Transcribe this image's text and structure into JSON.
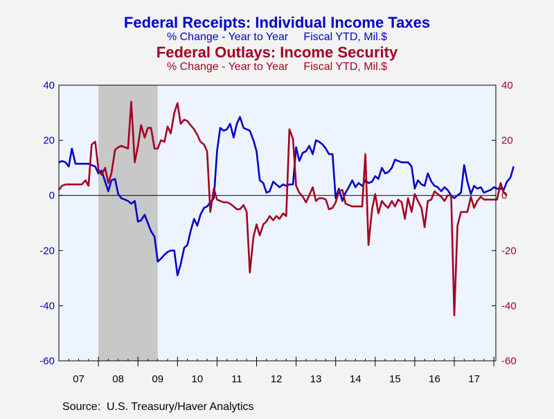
{
  "titles": {
    "line1": "Federal Receipts: Individual Income Taxes",
    "line2": "% Change - Year to Year     Fiscal YTD, Mil.$",
    "line3": "Federal Outlays: Income Security",
    "line4": "% Change - Year to Year     Fiscal YTD, Mil.$"
  },
  "source": "Source:  U.S. Treasury/Haver Analytics",
  "colors": {
    "blue": "#0000cc",
    "red": "#a50021",
    "plot_bg": "#eef4ff",
    "recession": "#c8c8c8",
    "page_bg": "#f3f3f3"
  },
  "chart_data": {
    "type": "line",
    "x_unit": "fiscal year index (0 = start of FY2007)",
    "x_range": [
      0,
      11.05
    ],
    "x_tick_labels": [
      "07",
      "08",
      "09",
      "10",
      "11",
      "12",
      "13",
      "14",
      "15",
      "16",
      "17"
    ],
    "y_left_range": [
      -60,
      40
    ],
    "y_right_range": [
      -60,
      40
    ],
    "y_ticks_left": [
      "40",
      "20",
      "0",
      "-20",
      "-40",
      "-60"
    ],
    "y_ticks_right": [
      "40",
      "20",
      "0",
      "-20",
      "-40",
      "-60"
    ],
    "y_tick_values": [
      40,
      20,
      0,
      -20,
      -40,
      -60
    ],
    "recession": [
      1.0,
      2.5
    ],
    "series": [
      {
        "color": "blue",
        "axis": "left",
        "points": [
          [
            0.0,
            12
          ],
          [
            0.08,
            12.5
          ],
          [
            0.17,
            12
          ],
          [
            0.25,
            10.5
          ],
          [
            0.33,
            17
          ],
          [
            0.42,
            11.5
          ],
          [
            0.5,
            11.5
          ],
          [
            0.58,
            11.5
          ],
          [
            0.67,
            11.5
          ],
          [
            0.75,
            11.5
          ],
          [
            0.83,
            11
          ],
          [
            0.92,
            10.5
          ],
          [
            1.0,
            8
          ],
          [
            1.08,
            9
          ],
          [
            1.17,
            5
          ],
          [
            1.25,
            1.5
          ],
          [
            1.33,
            5.5
          ],
          [
            1.42,
            6
          ],
          [
            1.5,
            0.5
          ],
          [
            1.58,
            -1
          ],
          [
            1.67,
            -1.5
          ],
          [
            1.75,
            -2
          ],
          [
            1.83,
            -3
          ],
          [
            1.92,
            -2
          ],
          [
            2.0,
            -9.5
          ],
          [
            2.08,
            -9
          ],
          [
            2.17,
            -7
          ],
          [
            2.25,
            -10
          ],
          [
            2.33,
            -13
          ],
          [
            2.42,
            -15
          ],
          [
            2.5,
            -24
          ],
          [
            2.58,
            -23
          ],
          [
            2.67,
            -21.5
          ],
          [
            2.75,
            -20.5
          ],
          [
            2.83,
            -20
          ],
          [
            2.92,
            -20
          ],
          [
            3.0,
            -29
          ],
          [
            3.08,
            -25
          ],
          [
            3.17,
            -19
          ],
          [
            3.25,
            -18
          ],
          [
            3.33,
            -13
          ],
          [
            3.42,
            -8.5
          ],
          [
            3.5,
            -11
          ],
          [
            3.58,
            -7
          ],
          [
            3.67,
            -4.5
          ],
          [
            3.75,
            -4
          ],
          [
            3.83,
            -2.5
          ],
          [
            3.92,
            -1
          ],
          [
            4.0,
            16
          ],
          [
            4.08,
            24.5
          ],
          [
            4.17,
            23.5
          ],
          [
            4.25,
            24
          ],
          [
            4.33,
            26
          ],
          [
            4.42,
            21
          ],
          [
            4.5,
            26
          ],
          [
            4.58,
            28.5
          ],
          [
            4.67,
            24.5
          ],
          [
            4.75,
            24
          ],
          [
            4.83,
            23.5
          ],
          [
            4.92,
            20
          ],
          [
            5.0,
            16
          ],
          [
            5.08,
            5.5
          ],
          [
            5.17,
            4.5
          ],
          [
            5.25,
            1
          ],
          [
            5.33,
            1.5
          ],
          [
            5.42,
            5
          ],
          [
            5.5,
            4
          ],
          [
            5.58,
            3
          ],
          [
            5.67,
            4
          ],
          [
            5.75,
            3.5
          ],
          [
            5.83,
            4
          ],
          [
            5.92,
            4
          ],
          [
            6.0,
            17.5
          ],
          [
            6.08,
            12.5
          ],
          [
            6.17,
            15.5
          ],
          [
            6.25,
            16
          ],
          [
            6.33,
            18
          ],
          [
            6.42,
            15
          ],
          [
            6.5,
            20
          ],
          [
            6.58,
            19.5
          ],
          [
            6.67,
            18.5
          ],
          [
            6.75,
            17
          ],
          [
            6.83,
            15
          ],
          [
            6.92,
            15
          ],
          [
            7.0,
            -1
          ],
          [
            7.08,
            2.5
          ],
          [
            7.17,
            -2
          ],
          [
            7.25,
            1
          ],
          [
            7.33,
            3
          ],
          [
            7.42,
            5.5
          ],
          [
            7.5,
            3
          ],
          [
            7.58,
            4.5
          ],
          [
            7.67,
            3.5
          ],
          [
            7.75,
            5.5
          ],
          [
            7.83,
            4.5
          ],
          [
            7.92,
            5
          ],
          [
            8.0,
            7
          ],
          [
            8.08,
            6
          ],
          [
            8.17,
            10
          ],
          [
            8.25,
            8
          ],
          [
            8.33,
            8.5
          ],
          [
            8.42,
            10
          ],
          [
            8.5,
            13
          ],
          [
            8.58,
            12.5
          ],
          [
            8.67,
            12
          ],
          [
            8.75,
            12
          ],
          [
            8.83,
            12
          ],
          [
            8.92,
            10.5
          ],
          [
            9.0,
            2.5
          ],
          [
            9.08,
            5.5
          ],
          [
            9.17,
            4
          ],
          [
            9.25,
            3.5
          ],
          [
            9.33,
            8
          ],
          [
            9.42,
            5
          ],
          [
            9.5,
            3.5
          ],
          [
            9.58,
            3
          ],
          [
            9.67,
            1.5
          ],
          [
            9.75,
            3
          ],
          [
            9.83,
            2
          ],
          [
            9.92,
            0
          ],
          [
            10.0,
            -1
          ],
          [
            10.08,
            0
          ],
          [
            10.17,
            1
          ],
          [
            10.25,
            11
          ],
          [
            10.33,
            5
          ],
          [
            10.42,
            0.5
          ],
          [
            10.5,
            3.5
          ],
          [
            10.58,
            2.5
          ],
          [
            10.67,
            3
          ],
          [
            10.75,
            1
          ],
          [
            10.83,
            1.5
          ],
          [
            10.92,
            2
          ],
          [
            11.0,
            3
          ],
          [
            11.08,
            2.5
          ],
          [
            11.17,
            2.5
          ],
          [
            11.25,
            2
          ],
          [
            11.33,
            5
          ],
          [
            11.42,
            6.5
          ],
          [
            11.5,
            10.5
          ]
        ]
      },
      {
        "color": "red",
        "axis": "right",
        "points": [
          [
            0.0,
            2
          ],
          [
            0.08,
            3.5
          ],
          [
            0.17,
            4
          ],
          [
            0.25,
            4
          ],
          [
            0.33,
            4
          ],
          [
            0.42,
            4
          ],
          [
            0.5,
            4
          ],
          [
            0.58,
            4
          ],
          [
            0.67,
            5.5
          ],
          [
            0.75,
            3.5
          ],
          [
            0.83,
            18.5
          ],
          [
            0.92,
            19.5
          ],
          [
            1.0,
            9.5
          ],
          [
            1.08,
            7.5
          ],
          [
            1.17,
            10
          ],
          [
            1.25,
            4.5
          ],
          [
            1.33,
            8
          ],
          [
            1.42,
            16.5
          ],
          [
            1.5,
            17.5
          ],
          [
            1.58,
            18
          ],
          [
            1.67,
            17.5
          ],
          [
            1.75,
            17
          ],
          [
            1.83,
            34
          ],
          [
            1.92,
            12
          ],
          [
            2.0,
            18
          ],
          [
            2.08,
            25.5
          ],
          [
            2.17,
            21
          ],
          [
            2.25,
            24.5
          ],
          [
            2.33,
            24.5
          ],
          [
            2.42,
            17
          ],
          [
            2.5,
            17
          ],
          [
            2.58,
            20
          ],
          [
            2.67,
            19.5
          ],
          [
            2.75,
            25
          ],
          [
            2.83,
            22.5
          ],
          [
            2.92,
            30
          ],
          [
            3.0,
            33.5
          ],
          [
            3.08,
            26
          ],
          [
            3.17,
            27.5
          ],
          [
            3.25,
            27
          ],
          [
            3.33,
            25.5
          ],
          [
            3.42,
            24
          ],
          [
            3.5,
            22
          ],
          [
            3.58,
            19.5
          ],
          [
            3.67,
            18.5
          ],
          [
            3.75,
            16
          ],
          [
            3.83,
            -6
          ],
          [
            3.92,
            2.5
          ],
          [
            4.0,
            -1.5
          ],
          [
            4.08,
            -2
          ],
          [
            4.17,
            -2.5
          ],
          [
            4.25,
            -2.5
          ],
          [
            4.33,
            -3
          ],
          [
            4.42,
            -4
          ],
          [
            4.5,
            -5
          ],
          [
            4.58,
            -5
          ],
          [
            4.67,
            -3.5
          ],
          [
            4.75,
            -6
          ],
          [
            4.83,
            -28
          ],
          [
            4.92,
            -15
          ],
          [
            5.0,
            -10.5
          ],
          [
            5.08,
            -14.5
          ],
          [
            5.17,
            -10.5
          ],
          [
            5.25,
            -9.5
          ],
          [
            5.33,
            -7.5
          ],
          [
            5.42,
            -9
          ],
          [
            5.5,
            -7.5
          ],
          [
            5.58,
            -8.5
          ],
          [
            5.67,
            -6.5
          ],
          [
            5.75,
            -7.5
          ],
          [
            5.83,
            24
          ],
          [
            5.92,
            20.5
          ],
          [
            6.0,
            3.5
          ],
          [
            6.08,
            1
          ],
          [
            6.17,
            -0.5
          ],
          [
            6.25,
            -2.5
          ],
          [
            6.33,
            0
          ],
          [
            6.42,
            3
          ],
          [
            6.5,
            -2
          ],
          [
            6.58,
            -1
          ],
          [
            6.67,
            -1
          ],
          [
            6.75,
            -1.5
          ],
          [
            6.83,
            -5
          ],
          [
            6.92,
            -4.5
          ],
          [
            7.0,
            -2.5
          ],
          [
            7.08,
            1.5
          ],
          [
            7.17,
            2
          ],
          [
            7.25,
            -3
          ],
          [
            7.33,
            -3.5
          ],
          [
            7.42,
            -4
          ],
          [
            7.5,
            -4
          ],
          [
            7.58,
            -4
          ],
          [
            7.67,
            -4
          ],
          [
            7.75,
            15
          ],
          [
            7.83,
            -18
          ],
          [
            7.92,
            -5
          ],
          [
            8.0,
            0.5
          ],
          [
            8.08,
            -6.5
          ],
          [
            8.17,
            -2
          ],
          [
            8.25,
            -3.5
          ],
          [
            8.33,
            -4.5
          ],
          [
            8.42,
            -2
          ],
          [
            8.5,
            -4
          ],
          [
            8.58,
            -1.5
          ],
          [
            8.67,
            -2.5
          ],
          [
            8.75,
            -8.5
          ],
          [
            8.83,
            -1
          ],
          [
            8.92,
            -6
          ],
          [
            9.0,
            0.5
          ],
          [
            9.08,
            -2
          ],
          [
            9.17,
            -4.5
          ],
          [
            9.25,
            -11.5
          ],
          [
            9.33,
            -2
          ],
          [
            9.42,
            -1.5
          ],
          [
            9.5,
            1.5
          ],
          [
            9.58,
            0.5
          ],
          [
            9.67,
            -0.5
          ],
          [
            9.75,
            -2
          ],
          [
            9.83,
            0
          ],
          [
            9.92,
            0
          ],
          [
            10.0,
            -43.5
          ],
          [
            10.08,
            -11
          ],
          [
            10.17,
            -6
          ],
          [
            10.25,
            -6
          ],
          [
            10.33,
            -6
          ],
          [
            10.42,
            -0.5
          ],
          [
            10.5,
            -4.5
          ],
          [
            10.58,
            -2
          ],
          [
            10.67,
            -0.5
          ],
          [
            10.75,
            -1.5
          ],
          [
            10.83,
            -1.5
          ],
          [
            10.92,
            -1.5
          ],
          [
            11.0,
            -1.5
          ],
          [
            11.08,
            -1.5
          ],
          [
            11.17,
            4.5
          ],
          [
            11.25,
            1
          ],
          [
            11.33,
            0
          ]
        ]
      }
    ]
  }
}
